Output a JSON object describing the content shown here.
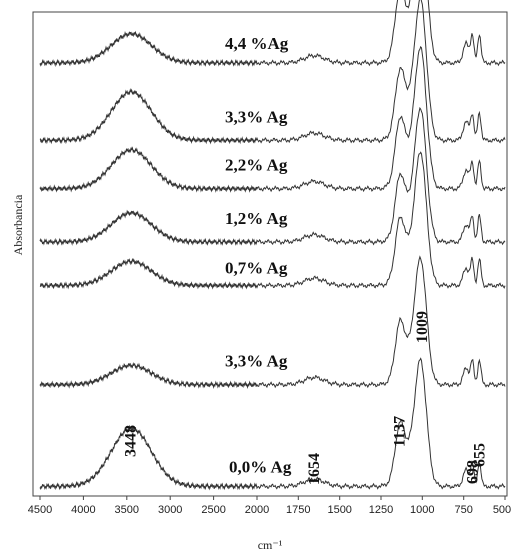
{
  "chart_data": {
    "type": "line",
    "title": "",
    "xlabel": "cm⁻¹",
    "ylabel": "Absorbancia",
    "xlim": [
      4500,
      500
    ],
    "x_reversed": true,
    "x_ticks": [
      4500,
      4000,
      3500,
      3000,
      2500,
      2000,
      1750,
      1500,
      1250,
      1000,
      750,
      500
    ],
    "x_tick_labels": [
      "4500",
      "4000",
      "3500",
      "3000",
      "2500",
      "2000",
      "1750",
      "1500",
      "1250",
      "1000",
      "750",
      "500"
    ],
    "grid": false,
    "series": [
      {
        "name": "4,4 %Ag",
        "baseline": 0.895,
        "oh_peak": 0.06,
        "scale": 1.0
      },
      {
        "name": "3,3% Ag",
        "baseline": 0.735,
        "oh_peak": 0.1,
        "scale": 0.95
      },
      {
        "name": "2,2% Ag",
        "baseline": 0.635,
        "oh_peak": 0.08,
        "scale": 0.95
      },
      {
        "name": "1,2% Ag",
        "baseline": 0.525,
        "oh_peak": 0.06,
        "scale": 0.9
      },
      {
        "name": "0,7% Ag",
        "baseline": 0.435,
        "oh_peak": 0.05,
        "scale": 0.9
      },
      {
        "name": "3,3% Ag",
        "baseline": 0.23,
        "oh_peak": 0.04,
        "scale": 0.85
      },
      {
        "name": "0,0% Ag",
        "baseline": 0.02,
        "oh_peak": 0.12,
        "scale": 0.85
      }
    ],
    "peak_labels": [
      {
        "text": "3448",
        "x": 3448
      },
      {
        "text": "1654",
        "x": 1654
      },
      {
        "text": "1137",
        "x": 1137
      },
      {
        "text": "1009",
        "x": 1009
      },
      {
        "text": "698",
        "x": 698
      },
      {
        "text": "655",
        "x": 655
      }
    ]
  }
}
